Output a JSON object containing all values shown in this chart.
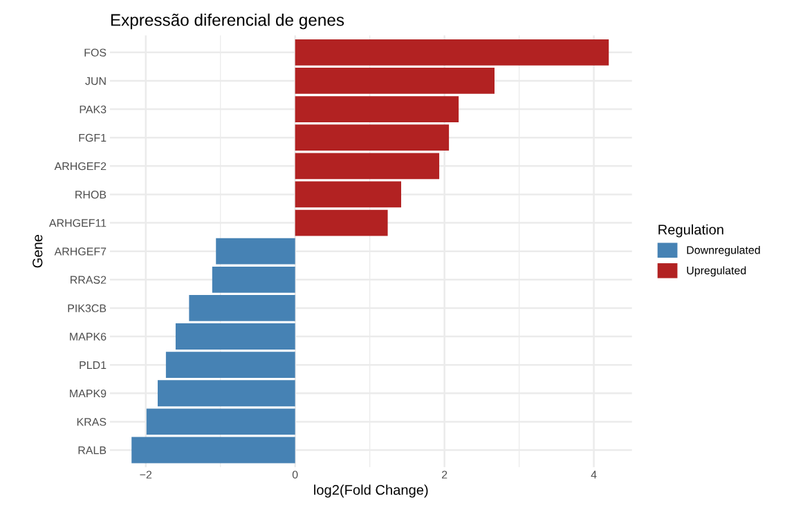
{
  "chart_data": {
    "type": "bar",
    "orientation": "horizontal",
    "title": "Expressão diferencial de genes",
    "xlabel": "log2(Fold Change)",
    "ylabel": "Gene",
    "legend_title": "Regulation",
    "legend": "right",
    "grid": true,
    "categories": [
      "FOS",
      "JUN",
      "PAK3",
      "FGF1",
      "ARHGEF2",
      "RHOB",
      "ARHGEF11",
      "ARHGEF7",
      "RRAS2",
      "PIK3CB",
      "MAPK6",
      "PLD1",
      "MAPK9",
      "KRAS",
      "RALB"
    ],
    "series": [
      {
        "name": "Downregulated",
        "color": "#4682b4",
        "values": [
          null,
          null,
          null,
          null,
          null,
          null,
          null,
          -1.06,
          -1.11,
          -1.42,
          -1.6,
          -1.73,
          -1.84,
          -1.99,
          -2.19
        ]
      },
      {
        "name": "Upregulated",
        "color": "#b22222",
        "values": [
          4.2,
          2.67,
          2.19,
          2.06,
          1.93,
          1.42,
          1.24,
          null,
          null,
          null,
          null,
          null,
          null,
          null,
          null
        ]
      }
    ],
    "xlim": [
      -2.48,
      4.51
    ],
    "xticks": [
      -2,
      {
        "value": -1,
        "label": null
      },
      0,
      {
        "value": 1,
        "label": null
      },
      2,
      {
        "value": 3,
        "label": null
      },
      4
    ]
  }
}
